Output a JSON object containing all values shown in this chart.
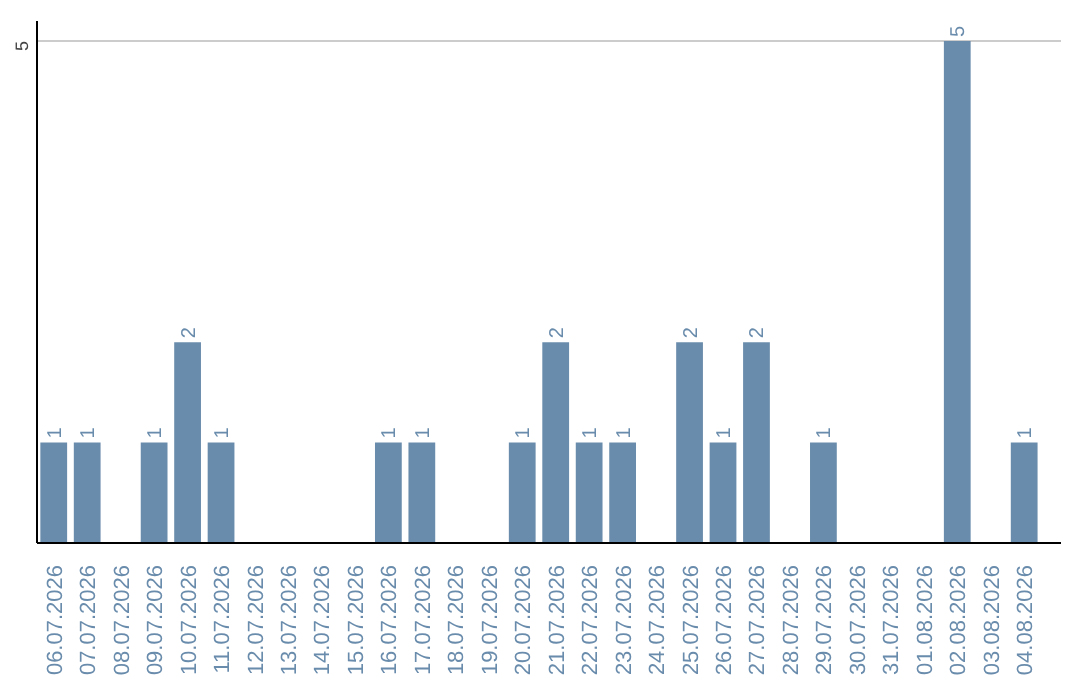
{
  "chart_data": {
    "type": "bar",
    "categories": [
      "06.07.2026",
      "07.07.2026",
      "08.07.2026",
      "09.07.2026",
      "10.07.2026",
      "11.07.2026",
      "12.07.2026",
      "13.07.2026",
      "14.07.2026",
      "15.07.2026",
      "16.07.2026",
      "17.07.2026",
      "18.07.2026",
      "19.07.2026",
      "20.07.2026",
      "21.07.2026",
      "22.07.2026",
      "23.07.2026",
      "24.07.2026",
      "25.07.2026",
      "26.07.2026",
      "27.07.2026",
      "28.07.2026",
      "29.07.2026",
      "30.07.2026",
      "31.07.2026",
      "01.08.2026",
      "02.08.2026",
      "03.08.2026",
      "04.08.2026"
    ],
    "values": [
      1,
      1,
      0,
      1,
      2,
      1,
      0,
      0,
      0,
      0,
      1,
      1,
      0,
      0,
      1,
      2,
      1,
      1,
      0,
      2,
      1,
      2,
      0,
      1,
      0,
      0,
      0,
      5,
      0,
      1
    ],
    "value_labels": [
      "1",
      "1",
      null,
      "1",
      "2",
      "1",
      null,
      null,
      null,
      null,
      "1",
      "1",
      null,
      null,
      "1",
      "2",
      "1",
      "1",
      null,
      "2",
      "1",
      "2",
      null,
      "1",
      null,
      null,
      null,
      "5",
      null,
      "1"
    ],
    "color": "#6a8cac",
    "ylim": [
      0,
      5.2
    ],
    "yticks": [
      5
    ],
    "grid": "y"
  }
}
